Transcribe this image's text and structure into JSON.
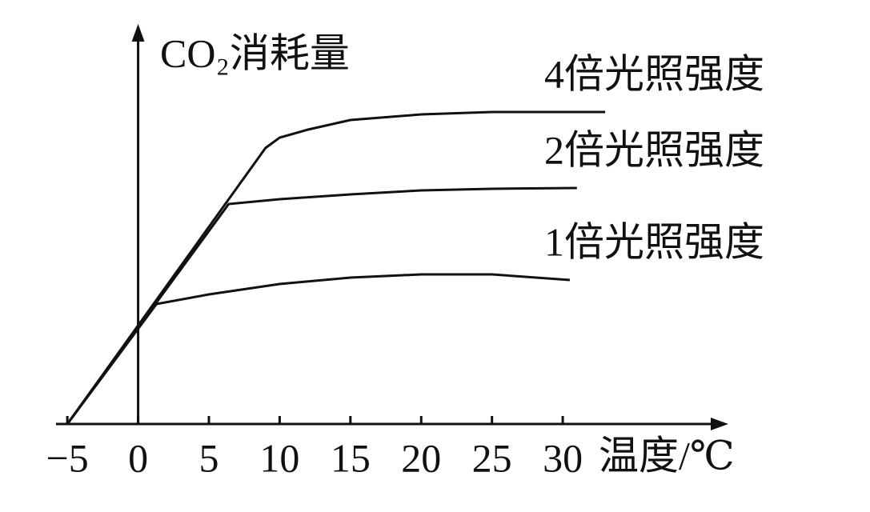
{
  "chart_data": {
    "type": "line",
    "y_label": "CO₂消耗量",
    "x_label": "温度/℃",
    "xlim": [
      -5.8,
      41.7
    ],
    "ylim": [
      0,
      10
    ],
    "xticks": [
      {
        "value": -5,
        "label": "−5"
      },
      0,
      5,
      10,
      15,
      20,
      25,
      30
    ],
    "series": [
      {
        "name": "4倍光照强度",
        "color": "#111111",
        "x": [
          -5,
          9,
          10,
          12,
          15,
          20,
          25,
          30,
          33
        ],
        "values": [
          0,
          6.9,
          7.16,
          7.36,
          7.6,
          7.74,
          7.8,
          7.8,
          7.8
        ]
      },
      {
        "name": "2倍光照强度",
        "color": "#111111",
        "x": [
          -5,
          6.4,
          10,
          15,
          20,
          25,
          31
        ],
        "values": [
          0,
          5.5,
          5.62,
          5.74,
          5.84,
          5.88,
          5.9
        ]
      },
      {
        "name": "1倍光照强度",
        "color": "#111111",
        "x": [
          -5,
          1.3,
          5,
          10,
          15,
          20,
          25,
          30.5
        ],
        "values": [
          0,
          3.0,
          3.24,
          3.5,
          3.66,
          3.74,
          3.74,
          3.6
        ]
      }
    ]
  }
}
